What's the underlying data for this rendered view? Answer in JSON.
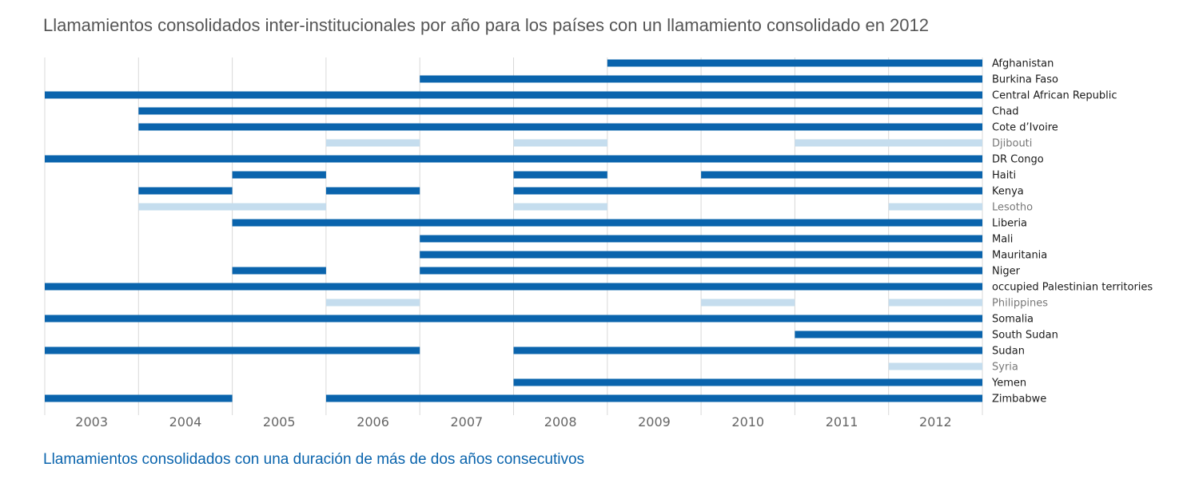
{
  "chart_data": {
    "type": "timeline",
    "title": "Llamamientos consolidados inter-institucionales por año para los países con un llamamiento consolidado en 2012",
    "subtitle": "Llamamientos consolidados con una duración de más de dos años consecutivos",
    "years": [
      "2003",
      "2004",
      "2005",
      "2006",
      "2007",
      "2008",
      "2009",
      "2010",
      "2011",
      "2012"
    ],
    "colors": {
      "long": "#0a64ad",
      "short": "#c5ddee",
      "grid": "#d8d8d8",
      "label_long": "#1a1a1a",
      "label_short": "#777777"
    },
    "countries": [
      {
        "name": "Afghanistan",
        "long": true,
        "segments": [
          [
            2009,
            2012
          ]
        ]
      },
      {
        "name": "Burkina Faso",
        "long": true,
        "segments": [
          [
            2007,
            2012
          ]
        ]
      },
      {
        "name": "Central African Republic",
        "long": true,
        "segments": [
          [
            2003,
            2012
          ]
        ]
      },
      {
        "name": "Chad",
        "long": true,
        "segments": [
          [
            2004,
            2012
          ]
        ]
      },
      {
        "name": "Cote d’Ivoire",
        "long": true,
        "segments": [
          [
            2004,
            2012
          ]
        ]
      },
      {
        "name": "Djibouti",
        "long": false,
        "segments": [
          [
            2006,
            2006
          ],
          [
            2008,
            2008
          ],
          [
            2011,
            2012
          ]
        ]
      },
      {
        "name": "DR Congo",
        "long": true,
        "segments": [
          [
            2003,
            2012
          ]
        ]
      },
      {
        "name": "Haiti",
        "long": true,
        "segments": [
          [
            2005,
            2005
          ],
          [
            2008,
            2008
          ],
          [
            2010,
            2012
          ]
        ]
      },
      {
        "name": "Kenya",
        "long": true,
        "segments": [
          [
            2004,
            2004
          ],
          [
            2006,
            2006
          ],
          [
            2008,
            2012
          ]
        ]
      },
      {
        "name": "Lesotho",
        "long": false,
        "segments": [
          [
            2004,
            2005
          ],
          [
            2008,
            2008
          ],
          [
            2012,
            2012
          ]
        ]
      },
      {
        "name": "Liberia",
        "long": true,
        "segments": [
          [
            2005,
            2012
          ]
        ]
      },
      {
        "name": "Mali",
        "long": true,
        "segments": [
          [
            2007,
            2012
          ]
        ]
      },
      {
        "name": "Mauritania",
        "long": true,
        "segments": [
          [
            2007,
            2012
          ]
        ]
      },
      {
        "name": "Niger",
        "long": true,
        "segments": [
          [
            2005,
            2005
          ],
          [
            2007,
            2012
          ]
        ]
      },
      {
        "name": "occupied Palestinian territories",
        "long": true,
        "segments": [
          [
            2003,
            2012
          ]
        ]
      },
      {
        "name": "Philippines",
        "long": false,
        "segments": [
          [
            2006,
            2006
          ],
          [
            2010,
            2010
          ],
          [
            2012,
            2012
          ]
        ]
      },
      {
        "name": "Somalia",
        "long": true,
        "segments": [
          [
            2003,
            2012
          ]
        ]
      },
      {
        "name": "South Sudan",
        "long": true,
        "segments": [
          [
            2011,
            2012
          ]
        ]
      },
      {
        "name": "Sudan",
        "long": true,
        "segments": [
          [
            2003,
            2006
          ],
          [
            2008,
            2012
          ]
        ]
      },
      {
        "name": "Syria",
        "long": false,
        "segments": [
          [
            2012,
            2012
          ]
        ]
      },
      {
        "name": "Yemen",
        "long": true,
        "segments": [
          [
            2008,
            2012
          ]
        ]
      },
      {
        "name": "Zimbabwe",
        "long": true,
        "segments": [
          [
            2003,
            2004
          ],
          [
            2006,
            2012
          ]
        ]
      }
    ]
  }
}
